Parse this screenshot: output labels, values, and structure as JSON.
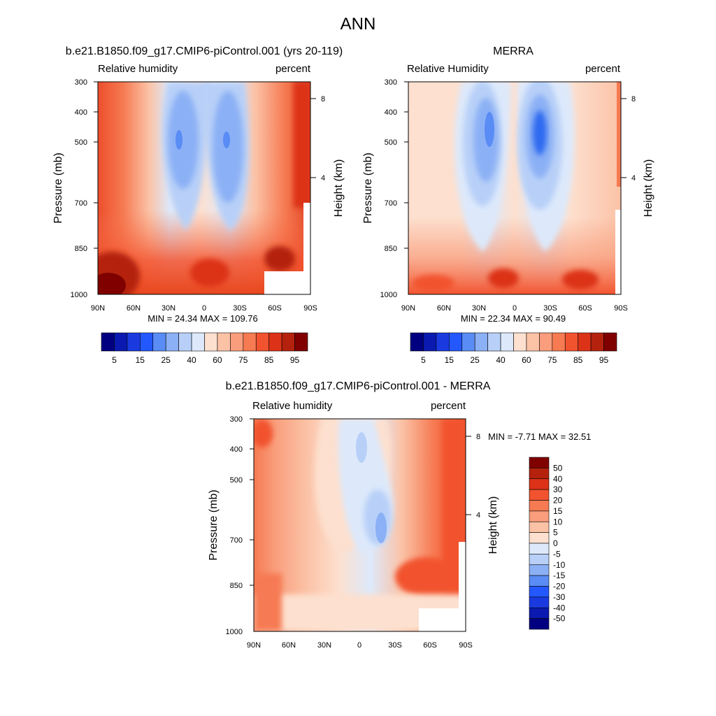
{
  "figure_title": "ANN",
  "colorbar_rh": {
    "labels": [
      "5",
      "15",
      "25",
      "40",
      "60",
      "75",
      "85",
      "95"
    ],
    "colors": [
      "#000080",
      "#0a1ab0",
      "#1a3adf",
      "#2458ff",
      "#5a8cf5",
      "#8bb0f5",
      "#b8d0f8",
      "#dde9fb",
      "#fde0cf",
      "#fbc2a6",
      "#f99d7c",
      "#f67a52",
      "#f2532f",
      "#dc3218",
      "#b4220e",
      "#800000"
    ]
  },
  "colorbar_diff": {
    "labels": [
      "50",
      "40",
      "30",
      "20",
      "15",
      "10",
      "5",
      "0",
      "-5",
      "-10",
      "-15",
      "-20",
      "-30",
      "-40",
      "-50"
    ],
    "colors": [
      "#800000",
      "#b4220e",
      "#dc3218",
      "#f2532f",
      "#f67a52",
      "#f99d7c",
      "#fbc2a6",
      "#fde0cf",
      "#dde9fb",
      "#b8d0f8",
      "#8bb0f5",
      "#5a8cf5",
      "#2458ff",
      "#1a3adf",
      "#0a1ab0",
      "#000080"
    ]
  },
  "chart_data": [
    {
      "type": "heatmap",
      "title": "b.e21.B1850.f09_g17.CMIP6-piControl.001 (yrs 20-119)",
      "left_label": "Relative humidity",
      "right_label": "percent",
      "ylabel": "Pressure (mb)",
      "y2label": "Height (km)",
      "x_ticks": [
        "90N",
        "60N",
        "30N",
        "0",
        "30S",
        "60S",
        "90S"
      ],
      "y_ticks": [
        "300",
        "400",
        "500",
        "700",
        "850",
        "1000"
      ],
      "y2_ticks": [
        "8",
        "4"
      ],
      "stats": "MIN =  24.34  MAX = 109.76",
      "min": 24.34,
      "max": 109.76
    },
    {
      "type": "heatmap",
      "title": "MERRA",
      "left_label": "Relative Humidity",
      "right_label": "percent",
      "ylabel": "Pressure (mb)",
      "y2label": "Height (km)",
      "x_ticks": [
        "90N",
        "60N",
        "30N",
        "0",
        "30S",
        "60S",
        "90S"
      ],
      "y_ticks": [
        "300",
        "400",
        "500",
        "700",
        "850",
        "1000"
      ],
      "y2_ticks": [
        "8",
        "4"
      ],
      "stats": "MIN =  22.34  MAX =  90.49",
      "min": 22.34,
      "max": 90.49
    },
    {
      "type": "heatmap",
      "title": "b.e21.B1850.f09_g17.CMIP6-piControl.001 - MERRA",
      "left_label": "Relative humidity",
      "right_label": "percent",
      "ylabel": "Pressure (mb)",
      "y2label": "Height (km)",
      "x_ticks": [
        "90N",
        "60N",
        "30N",
        "0",
        "30S",
        "60S",
        "90S"
      ],
      "y_ticks": [
        "300",
        "400",
        "500",
        "700",
        "850",
        "1000"
      ],
      "y2_ticks": [
        "8",
        "4"
      ],
      "stats": "MIN =  -7.71  MAX =  32.51",
      "min": -7.71,
      "max": 32.51
    }
  ]
}
